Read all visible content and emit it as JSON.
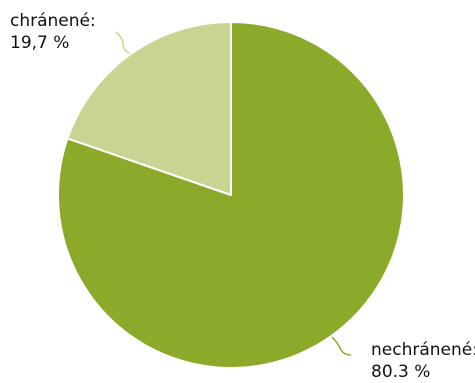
{
  "chart_data": {
    "type": "pie",
    "slices": [
      {
        "label": "nechránené:",
        "value": 80.3,
        "display": "80.3 %",
        "color": "#8caa29"
      },
      {
        "label": "chránené:",
        "value": 19.7,
        "display": "19,7 %",
        "color": "#c8d592"
      }
    ],
    "start_angle": "12 o'clock",
    "direction": "clockwise",
    "slice_border_color": "#ffffff",
    "leader_line_color": "#c8d592"
  }
}
